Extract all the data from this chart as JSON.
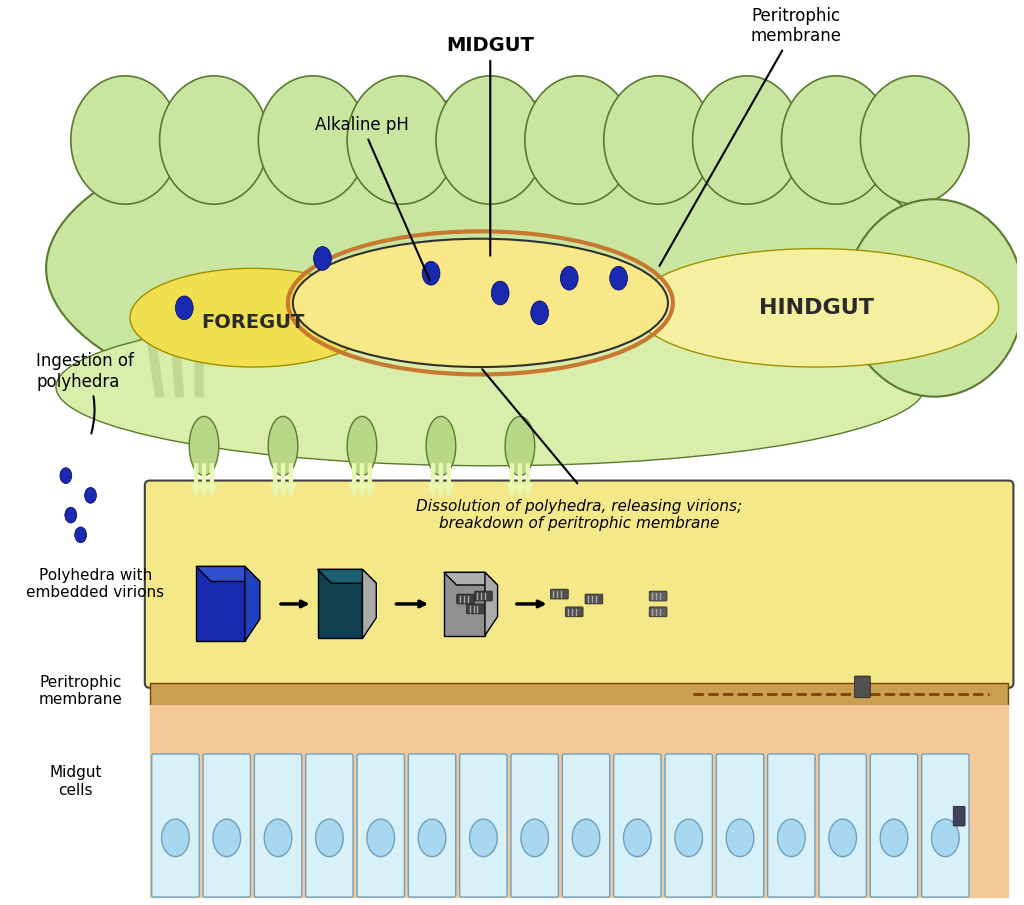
{
  "bg_color": "#ffffff",
  "caterpillar_body_color": "#c8e6a0",
  "caterpillar_outline_color": "#5a7a30",
  "gut_color": "#f5e070",
  "gut_inner_color": "#f5d060",
  "hindgut_color": "#f0f090",
  "foregut_color": "#e8d060",
  "peach_layer_color": "#f5c87a",
  "midgut_bg_color": "#f5e898",
  "midgut_cell_color": "#b8ddf5",
  "midgut_cell_outline": "#7ab0d0",
  "peritrophic_color": "#c8a060",
  "peritrophic_bg": "#d4b060",
  "salmon_layer": "#f5c8a0",
  "polyhedra_blue": "#2030a0",
  "polyhedra_teal": "#107080",
  "polyhedra_grey": "#909090",
  "virion_color": "#606060",
  "arrow_color": "#111111",
  "label_color": "#111111",
  "dissolve_box_color": "#f5e898",
  "labels": {
    "ingestion": "Ingestion of\npolyhedra",
    "foregut": "FOREGUT",
    "midgut": "MIDGUT",
    "hindgut": "HINDGUT",
    "alkaline": "Alkaline pH",
    "peritrophic_top": "Peritrophic\nmembrane",
    "polyhedra_label": "Polyhedra with\nembedded virions",
    "dissolution": "Dissolution of polyhedra, releasing virions;\nbreakdown of peritrophic membrane",
    "peritrophic_bottom": "Peritrophic\nmembrane",
    "midgut_cells": "Midgut\ncells"
  }
}
